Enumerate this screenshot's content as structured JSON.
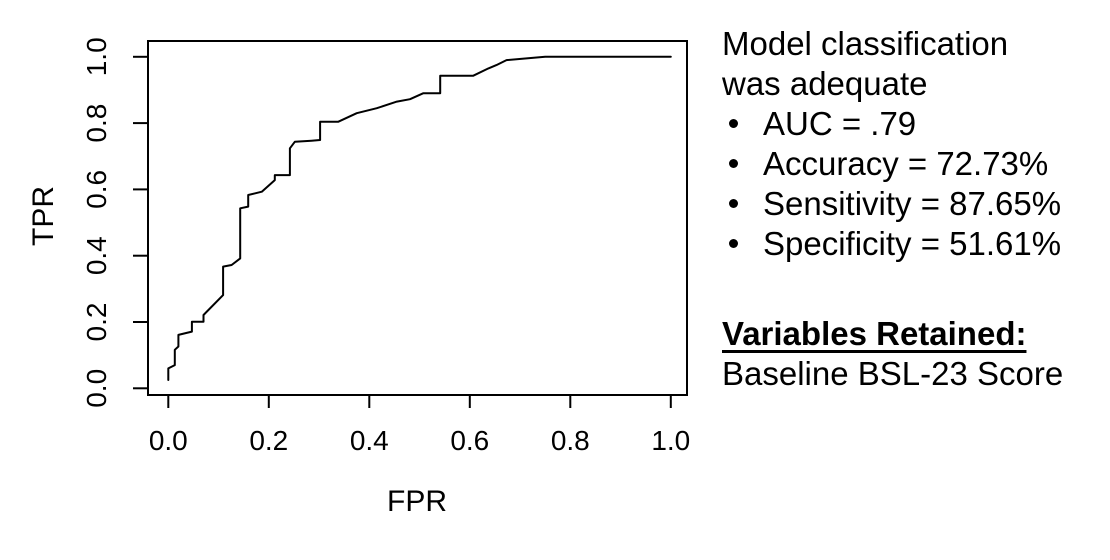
{
  "colors": {
    "foreground": "#000000",
    "background": "#ffffff",
    "curve": "#000000"
  },
  "chart_data": {
    "type": "line",
    "subtype": "roc-curve",
    "title": "",
    "xlabel": "FPR",
    "ylabel": "TPR",
    "xlim": [
      0.0,
      1.0
    ],
    "ylim": [
      0.0,
      1.0
    ],
    "grid": false,
    "legend": "none",
    "x_ticks": [
      0.0,
      0.2,
      0.4,
      0.6,
      0.8,
      1.0
    ],
    "x_tick_labels": [
      "0.0",
      "0.2",
      "0.4",
      "0.6",
      "0.8",
      "1.0"
    ],
    "y_ticks": [
      0.0,
      0.2,
      0.4,
      0.6,
      0.8,
      1.0
    ],
    "y_tick_labels": [
      "0.0",
      "0.2",
      "0.4",
      "0.6",
      "0.8",
      "1.0"
    ],
    "series": [
      {
        "name": "ROC curve",
        "points": [
          [
            0.0,
            0.025
          ],
          [
            0.0,
            0.06
          ],
          [
            0.013,
            0.07
          ],
          [
            0.013,
            0.116
          ],
          [
            0.02,
            0.126
          ],
          [
            0.02,
            0.161
          ],
          [
            0.047,
            0.171
          ],
          [
            0.047,
            0.201
          ],
          [
            0.07,
            0.201
          ],
          [
            0.07,
            0.221
          ],
          [
            0.109,
            0.281
          ],
          [
            0.109,
            0.367
          ],
          [
            0.126,
            0.372
          ],
          [
            0.143,
            0.392
          ],
          [
            0.143,
            0.543
          ],
          [
            0.159,
            0.548
          ],
          [
            0.159,
            0.583
          ],
          [
            0.186,
            0.593
          ],
          [
            0.212,
            0.628
          ],
          [
            0.212,
            0.643
          ],
          [
            0.242,
            0.643
          ],
          [
            0.242,
            0.724
          ],
          [
            0.252,
            0.744
          ],
          [
            0.285,
            0.747
          ],
          [
            0.302,
            0.749
          ],
          [
            0.302,
            0.804
          ],
          [
            0.338,
            0.804
          ],
          [
            0.375,
            0.83
          ],
          [
            0.415,
            0.845
          ],
          [
            0.455,
            0.865
          ],
          [
            0.481,
            0.872
          ],
          [
            0.507,
            0.89
          ],
          [
            0.541,
            0.89
          ],
          [
            0.541,
            0.943
          ],
          [
            0.607,
            0.943
          ],
          [
            0.637,
            0.965
          ],
          [
            0.653,
            0.975
          ],
          [
            0.673,
            0.99
          ],
          [
            0.75,
            1.0
          ],
          [
            1.0,
            1.0
          ]
        ]
      }
    ]
  },
  "annotation": {
    "heading_lines": [
      "Model classification",
      "was adequate"
    ],
    "bullets": [
      "AUC = .79",
      "Accuracy = 72.73%",
      "Sensitivity = 87.65%",
      "Specificity = 51.61%"
    ],
    "variables_heading": "Variables Retained:",
    "variables_value": "Baseline BSL-23 Score"
  }
}
